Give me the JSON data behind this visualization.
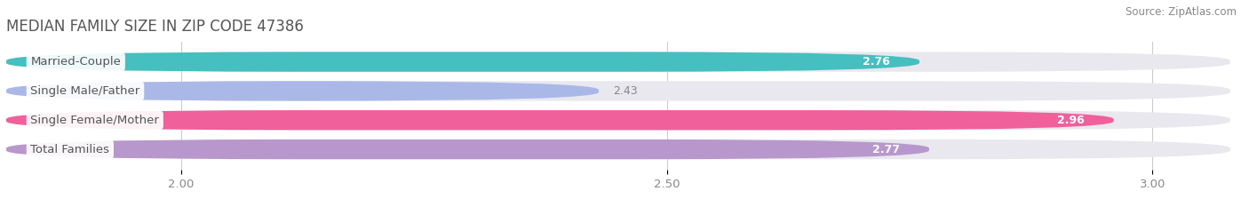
{
  "title": "MEDIAN FAMILY SIZE IN ZIP CODE 47386",
  "source": "Source: ZipAtlas.com",
  "categories": [
    "Married-Couple",
    "Single Male/Father",
    "Single Female/Mother",
    "Total Families"
  ],
  "values": [
    2.76,
    2.43,
    2.96,
    2.77
  ],
  "bar_colors": [
    "#45BFBF",
    "#AAB8E8",
    "#F0609A",
    "#B898CC"
  ],
  "bar_bg_color": "#E8E8EE",
  "xlim": [
    1.82,
    3.08
  ],
  "xticks": [
    2.0,
    2.5,
    3.0
  ],
  "bar_height": 0.68,
  "label_fontsize": 9.5,
  "value_fontsize": 9,
  "title_fontsize": 12,
  "source_fontsize": 8.5,
  "background_color": "#FFFFFF",
  "value_inside_color": "white",
  "value_outside_color": "#888888",
  "label_text_color": "#555555"
}
